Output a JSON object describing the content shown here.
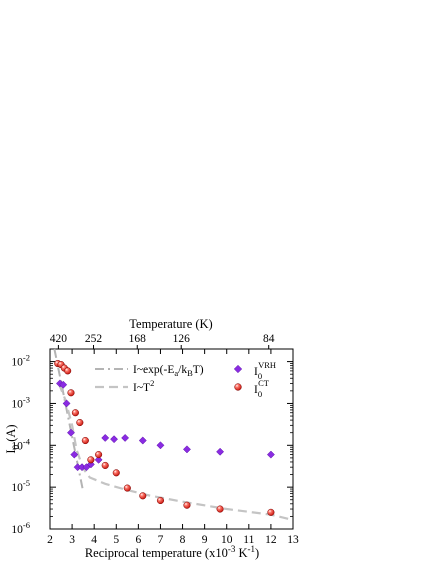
{
  "chart_data": {
    "type": "scatter",
    "x_label_parts": {
      "base": "Reciprocal temperature (x10",
      "exp1": "-3",
      "mid": " K",
      "exp2": "-1",
      "end": ")"
    },
    "y_label_parts": {
      "base": "I",
      "sub": "0",
      "end": " (A)"
    },
    "top_axis_title": "Temperature (K)",
    "top_axis_ticks": [
      {
        "x": 2.38,
        "label": "420"
      },
      {
        "x": 3.97,
        "label": "252"
      },
      {
        "x": 5.95,
        "label": "168"
      },
      {
        "x": 7.94,
        "label": "126"
      },
      {
        "x": 11.9,
        "label": "84"
      }
    ],
    "xlim": [
      2,
      13
    ],
    "ylim": [
      1e-06,
      0.02
    ],
    "y_scale": "log",
    "x_ticks": [
      "2",
      "3",
      "4",
      "5",
      "6",
      "7",
      "8",
      "9",
      "10",
      "11",
      "12",
      "13"
    ],
    "y_ticks": [
      {
        "value": 1e-06,
        "mantissa": "10",
        "exp": "-6"
      },
      {
        "value": 1e-05,
        "mantissa": "10",
        "exp": "-5"
      },
      {
        "value": 0.0001,
        "mantissa": "10",
        "exp": "-4"
      },
      {
        "value": 0.001,
        "mantissa": "10",
        "exp": "-3"
      },
      {
        "value": 0.01,
        "mantissa": "10",
        "exp": "-2"
      }
    ],
    "legend_placement": "inside-top",
    "series": [
      {
        "name_parts": {
          "base": "I",
          "sub": "0",
          "sup": "VRH"
        },
        "marker": "diamond",
        "color": "#8a2be2",
        "points": [
          [
            2.45,
            0.003
          ],
          [
            2.6,
            0.0028
          ],
          [
            2.75,
            0.001
          ],
          [
            2.95,
            0.0002
          ],
          [
            3.1,
            6e-05
          ],
          [
            3.25,
            3e-05
          ],
          [
            3.45,
            3e-05
          ],
          [
            3.65,
            3e-05
          ],
          [
            3.85,
            3.5e-05
          ],
          [
            4.2,
            4.5e-05
          ],
          [
            4.5,
            0.00015
          ],
          [
            4.9,
            0.00014
          ],
          [
            5.4,
            0.00015
          ],
          [
            6.2,
            0.00013
          ],
          [
            7.0,
            0.0001
          ],
          [
            8.2,
            8e-05
          ],
          [
            9.7,
            7e-05
          ],
          [
            12.0,
            6e-05
          ]
        ]
      },
      {
        "name_parts": {
          "base": "I",
          "sub": "0",
          "sup": "CT"
        },
        "marker": "sphere",
        "color": "#e8201a",
        "points": [
          [
            2.35,
            0.009
          ],
          [
            2.5,
            0.0085
          ],
          [
            2.65,
            0.007
          ],
          [
            2.8,
            0.006
          ],
          [
            2.95,
            0.0018
          ],
          [
            3.15,
            0.0006
          ],
          [
            3.35,
            0.00035
          ],
          [
            3.6,
            0.00013
          ],
          [
            3.85,
            4.5e-05
          ],
          [
            4.2,
            6e-05
          ],
          [
            4.5,
            3.3e-05
          ],
          [
            5.0,
            2.2e-05
          ],
          [
            5.5,
            9.5e-06
          ],
          [
            6.2,
            6.2e-06
          ],
          [
            7.0,
            4.8e-06
          ],
          [
            8.2,
            3.7e-06
          ],
          [
            9.7,
            3e-06
          ],
          [
            12.0,
            2.5e-06
          ]
        ]
      }
    ],
    "fits": [
      {
        "name_parts": {
          "a": "I~exp(-E",
          "a_sub": "a",
          "b": "/k",
          "b_sub": "B",
          "c": "T)"
        },
        "style": "dash-dot",
        "color": "#b4b4b4",
        "points": [
          [
            2.2,
            0.02
          ],
          [
            3.5,
            8e-06
          ]
        ]
      },
      {
        "name_parts": {
          "base": "I~T",
          "sup": "2"
        },
        "style": "dashed",
        "color": "#c4c4c4",
        "points": [
          [
            2.4,
            0.003
          ],
          [
            2.7,
            0.0012
          ],
          [
            3.0,
            0.0003
          ],
          [
            3.2,
            8e-05
          ],
          [
            3.5,
            2.8e-05
          ],
          [
            3.8,
            1.7e-05
          ],
          [
            4.5,
            1.2e-05
          ],
          [
            5.5,
            8.5e-06
          ],
          [
            6.5,
            6.3e-06
          ],
          [
            8.0,
            4.5e-06
          ],
          [
            10.0,
            3e-06
          ],
          [
            12.0,
            2.2e-06
          ],
          [
            12.9,
            1.7e-06
          ]
        ]
      }
    ]
  }
}
